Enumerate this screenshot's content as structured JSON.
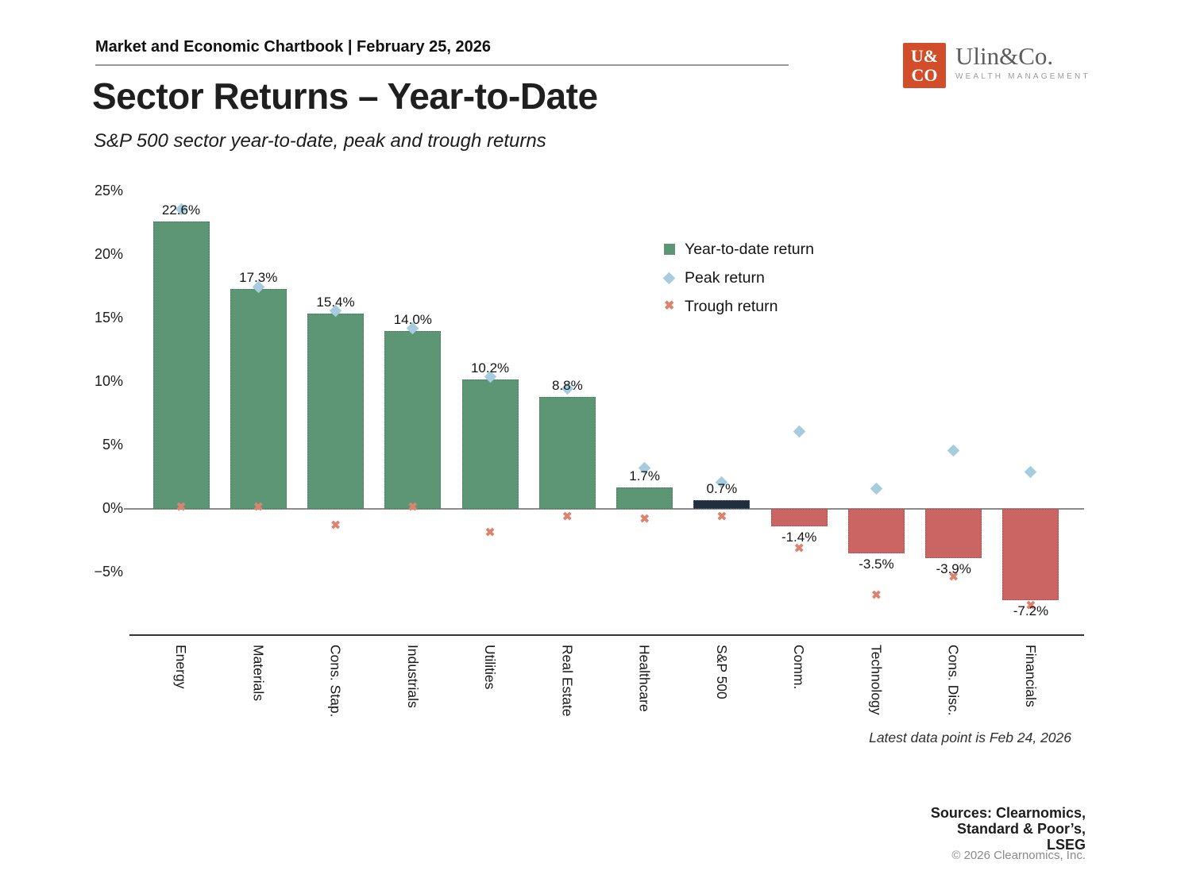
{
  "header": {
    "chartbook_label": "Market and Economic Chartbook | February 25, 2026"
  },
  "logo": {
    "badge_line1": "U&",
    "badge_line2": "CO",
    "name": "Ulin&Co.",
    "tagline": "WEALTH MANAGEMENT",
    "badge_color": "#d24e2a"
  },
  "title": "Sector Returns – Year-to-Date",
  "subtitle": "S&P 500 sector year-to-date, peak and trough returns",
  "legend": [
    {
      "label": "Year-to-date return",
      "marker": "square-icon",
      "color": "#5c9674"
    },
    {
      "label": "Peak return",
      "marker": "diamond-icon",
      "color": "#a7cce0"
    },
    {
      "label": "Trough return",
      "marker": "x-icon",
      "color": "#dc8370"
    }
  ],
  "chart_data": {
    "type": "bar",
    "title": "Sector Returns – Year-to-Date",
    "subtitle": "S&P 500 sector year-to-date, peak and trough returns",
    "categories": [
      "Energy",
      "Materials",
      "Cons. Stap.",
      "Industrials",
      "Utilities",
      "Real Estate",
      "Healthcare",
      "S&P 500",
      "Comm.",
      "Technology",
      "Cons. Disc.",
      "Financials"
    ],
    "series": [
      {
        "name": "Year-to-date return",
        "values": [
          22.6,
          17.3,
          15.4,
          14.0,
          10.2,
          8.8,
          1.7,
          0.7,
          -1.4,
          -3.5,
          -3.9,
          -7.2
        ],
        "labels": [
          "22.6%",
          "17.3%",
          "15.4%",
          "14.0%",
          "10.2%",
          "8.8%",
          "1.7%",
          "0.7%",
          "-1.4%",
          "-3.5%",
          "-3.9%",
          "-7.2%"
        ]
      },
      {
        "name": "Peak return",
        "values": [
          23.6,
          17.5,
          15.6,
          14.2,
          10.4,
          9.5,
          3.2,
          2.1,
          6.1,
          1.6,
          4.6,
          2.9
        ]
      },
      {
        "name": "Trough return",
        "values": [
          0.1,
          0.1,
          -1.3,
          0.1,
          -1.9,
          -0.6,
          -0.8,
          -0.6,
          -3.1,
          -6.8,
          -5.4,
          -7.6
        ]
      }
    ],
    "point_types": [
      "positive",
      "positive",
      "positive",
      "positive",
      "positive",
      "positive",
      "positive",
      "benchmark",
      "negative",
      "negative",
      "negative",
      "negative"
    ],
    "bar_colors": {
      "positive": "#5c9674",
      "negative": "#cb6563",
      "benchmark": "#202e3e"
    },
    "bar_border_colors": {
      "positive": "#47775c",
      "negative": "#a14c4b",
      "benchmark": "#5a6780"
    },
    "marker_colors": {
      "peak": "#a7cce0",
      "trough": "#dc8370"
    },
    "yticks": [
      {
        "label": "25%",
        "value": 25
      },
      {
        "label": "20%",
        "value": 20
      },
      {
        "label": "15%",
        "value": 15
      },
      {
        "label": "10%",
        "value": 10
      },
      {
        "label": "5%",
        "value": 5
      },
      {
        "label": "0%",
        "value": 0
      },
      {
        "label": "−5%",
        "value": -5
      }
    ],
    "ylim": [
      -10,
      25.6
    ],
    "grid": false,
    "legend_position": "upper right"
  },
  "footnote": "Latest data point is Feb 24, 2026",
  "sources": {
    "lines": [
      "Sources: Clearnomics,",
      "Standard & Poor’s,",
      "LSEG"
    ],
    "copyright": "© 2026 Clearnomics, Inc."
  }
}
